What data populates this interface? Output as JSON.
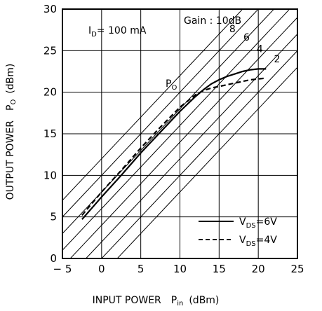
{
  "chart_data": {
    "type": "line",
    "xlabel": "INPUT POWER",
    "xlabel_symbol": "P",
    "xlabel_symbol_sub": "in",
    "xlabel_unit": "(dBm)",
    "ylabel": "OUTPUT POWER",
    "ylabel_symbol": "P",
    "ylabel_symbol_sub": "O",
    "ylabel_unit": "(dBm)",
    "xlim": [
      -5,
      25
    ],
    "ylim": [
      0,
      30
    ],
    "xticks": [
      -5,
      0,
      5,
      10,
      15,
      20,
      25
    ],
    "yticks": [
      0,
      5,
      10,
      15,
      20,
      25,
      30
    ],
    "grid": true,
    "legend_position": "bottom-right",
    "annotations": {
      "id_label": "I",
      "id_sub": "D",
      "id_value": "= 100 mA",
      "gain": "Gain : 10dB",
      "po_label": "P",
      "po_sub": "O"
    },
    "gain_lines": [
      {
        "label": "8",
        "offset": 8
      },
      {
        "label": "6",
        "offset": 6
      },
      {
        "label": "4",
        "offset": 4
      },
      {
        "label": "2",
        "offset": 2
      },
      {
        "label": "",
        "offset": 0
      },
      {
        "label": "",
        "offset": 10
      },
      {
        "label": "",
        "offset": 12
      },
      {
        "label": "",
        "offset": -2
      }
    ],
    "series": [
      {
        "name": "V_DS=6V",
        "legend_main": "V",
        "legend_sub": "DS",
        "legend_value": "=6V",
        "style": "solid",
        "color": "#000000",
        "x": [
          -2.5,
          0,
          2.5,
          5,
          7.5,
          10,
          12,
          13,
          14,
          15,
          16,
          17,
          18,
          19,
          20,
          21
        ],
        "y": [
          4.7,
          7.4,
          10.0,
          12.7,
          15.2,
          17.7,
          19.5,
          20.3,
          21.0,
          21.5,
          21.9,
          22.2,
          22.5,
          22.7,
          22.8,
          22.8
        ]
      },
      {
        "name": "V_DS=4V",
        "legend_main": "V",
        "legend_sub": "DS",
        "legend_value": "=4V",
        "style": "dashed",
        "color": "#000000",
        "x": [
          -2.5,
          0,
          2.5,
          5,
          7.5,
          10,
          12,
          13,
          14,
          15,
          16,
          17,
          18,
          19,
          20,
          21
        ],
        "y": [
          5.2,
          8.0,
          10.6,
          13.3,
          15.8,
          18.2,
          19.7,
          20.2,
          20.5,
          20.7,
          20.9,
          21.1,
          21.3,
          21.5,
          21.6,
          21.7
        ]
      }
    ]
  }
}
